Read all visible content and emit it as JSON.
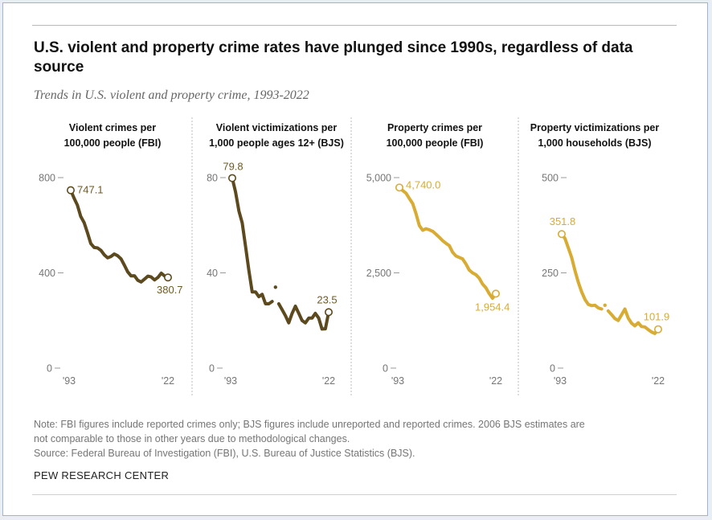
{
  "header": {
    "title": "U.S. violent and property crime rates have plunged since 1990s, regardless of data source",
    "subtitle": "Trends in U.S. violent and property crime, 1993-2022"
  },
  "footer": {
    "note_line1": "Note: FBI figures include reported crimes only; BJS figures include unreported and reported crimes. 2006 BJS estimates are",
    "note_line2": "not comparable to those in other years due to methodological changes.",
    "source": "Source: Federal Bureau of Investigation (FBI), U.S. Bureau of Justice Statistics (BJS).",
    "credit": "PEW RESEARCH CENTER"
  },
  "colors": {
    "dark": "#5c4a1e",
    "gold": "#d8ab32",
    "axis": "#999999",
    "tick_label": "#757575"
  },
  "chart_data": [
    {
      "type": "line",
      "title": "Violent crimes per 100,000 people (FBI)",
      "title_lines": [
        "Violent crimes per",
        "100,000 people (FBI)"
      ],
      "color": "#5c4a1e",
      "ylim": [
        0,
        800
      ],
      "yticks": [
        0,
        400,
        800
      ],
      "ytick_labels": [
        "0",
        "400",
        "800"
      ],
      "xtick_labels": [
        "'93",
        "'22"
      ],
      "first_label": "747.1",
      "last_label": "380.7",
      "series": [
        {
          "x": [
            1993,
            1994,
            1995,
            1996,
            1997,
            1998,
            1999,
            2000,
            2001,
            2002,
            2003,
            2004,
            2005,
            2006,
            2007,
            2008,
            2009,
            2010,
            2011,
            2012,
            2013,
            2014,
            2015,
            2016,
            2017,
            2018,
            2019,
            2020,
            2021,
            2022
          ],
          "y": [
            747.1,
            713.6,
            684.5,
            636.6,
            611.0,
            567.6,
            523.0,
            506.5,
            504.5,
            494.4,
            475.8,
            463.2,
            469.0,
            479.3,
            471.8,
            458.6,
            431.9,
            404.5,
            387.1,
            387.8,
            369.1,
            361.6,
            373.7,
            386.3,
            382.9,
            370.4,
            380.8,
            398.5,
            387.0,
            380.7
          ]
        }
      ]
    },
    {
      "type": "line",
      "title": "Violent victimizations per 1,000 people ages 12+ (BJS)",
      "title_lines": [
        "Violent victimizations per",
        "1,000 people ages 12+ (BJS)"
      ],
      "color": "#5c4a1e",
      "ylim": [
        0,
        80
      ],
      "yticks": [
        0,
        40,
        80
      ],
      "ytick_labels": [
        "0",
        "40",
        "80"
      ],
      "xtick_labels": [
        "'93",
        "'22"
      ],
      "first_label": "79.8",
      "last_label": "23.5",
      "series": [
        {
          "x": [
            1993,
            1994,
            1995,
            1996,
            1997,
            1998,
            1999,
            2000,
            2001,
            2002,
            2003,
            2004,
            2005
          ],
          "y": [
            79.8,
            74.0,
            66.0,
            61.0,
            51.0,
            41.0,
            32.0,
            32.0,
            30.0,
            31.0,
            27.0,
            27.0,
            28.0
          ]
        },
        {
          "x": [
            2006
          ],
          "y": [
            34.0
          ]
        },
        {
          "x": [
            2007,
            2008,
            2009,
            2010,
            2011,
            2012,
            2013,
            2014,
            2015,
            2016,
            2017,
            2018,
            2019,
            2020,
            2021,
            2022
          ],
          "y": [
            27.0,
            24.5,
            22.0,
            19.0,
            23.0,
            26.0,
            23.0,
            20.0,
            19.0,
            21.0,
            21.0,
            23.0,
            21.0,
            16.4,
            16.5,
            23.5
          ]
        }
      ]
    },
    {
      "type": "line",
      "title": "Property crimes per 100,000 people (FBI)",
      "title_lines": [
        "Property crimes per",
        "100,000 people (FBI)"
      ],
      "color": "#d8ab32",
      "ylim": [
        0,
        5000
      ],
      "yticks": [
        0,
        2500,
        5000
      ],
      "ytick_labels": [
        "0",
        "2,500",
        "5,000"
      ],
      "xtick_labels": [
        "'93",
        "'22"
      ],
      "first_label": "4,740.0",
      "last_label": "1,954.4",
      "series": [
        {
          "x": [
            1993,
            1994,
            1995,
            1996,
            1997,
            1998,
            1999,
            2000,
            2001,
            2002,
            2003,
            2004,
            2005,
            2006,
            2007,
            2008,
            2009,
            2010,
            2011,
            2012,
            2013,
            2014,
            2015,
            2016,
            2017,
            2018,
            2019,
            2020,
            2021,
            2022
          ],
          "y": [
            4740.0,
            4660.2,
            4590.5,
            4451.0,
            4316.3,
            4052.5,
            3743.6,
            3618.3,
            3658.1,
            3630.6,
            3591.2,
            3514.1,
            3431.5,
            3346.6,
            3276.4,
            3214.6,
            3041.3,
            2945.9,
            2905.4,
            2868.0,
            2733.6,
            2574.1,
            2500.5,
            2451.6,
            2362.2,
            2209.8,
            2109.9,
            1958.2,
            1832.3,
            1954.4
          ]
        }
      ]
    },
    {
      "type": "line",
      "title": "Property victimizations per 1,000 households (BJS)",
      "title_lines": [
        "Property victimizations per",
        "1,000 households (BJS)"
      ],
      "color": "#d8ab32",
      "ylim": [
        0,
        500
      ],
      "yticks": [
        0,
        250,
        500
      ],
      "ytick_labels": [
        "0",
        "250",
        "500"
      ],
      "xtick_labels": [
        "'93",
        "'22"
      ],
      "first_label": "351.8",
      "last_label": "101.9",
      "series": [
        {
          "x": [
            1993,
            1994,
            1995,
            1996,
            1997,
            1998,
            1999,
            2000,
            2001,
            2002,
            2003,
            2004,
            2005
          ],
          "y": [
            351.8,
            340.0,
            315.0,
            290.0,
            255.0,
            225.0,
            200.0,
            180.0,
            167.0,
            164.0,
            165.0,
            158.0,
            155.0
          ]
        },
        {
          "x": [
            2006
          ],
          "y": [
            165.0
          ]
        },
        {
          "x": [
            2007,
            2008,
            2009,
            2010,
            2011,
            2012,
            2013,
            2014,
            2015,
            2016,
            2017,
            2018,
            2019,
            2020,
            2021,
            2022
          ],
          "y": [
            150.0,
            140.0,
            130.0,
            125.0,
            140.0,
            155.0,
            131.0,
            118.0,
            111.0,
            119.0,
            109.0,
            108.0,
            101.0,
            95.0,
            91.0,
            101.9
          ]
        }
      ]
    }
  ]
}
